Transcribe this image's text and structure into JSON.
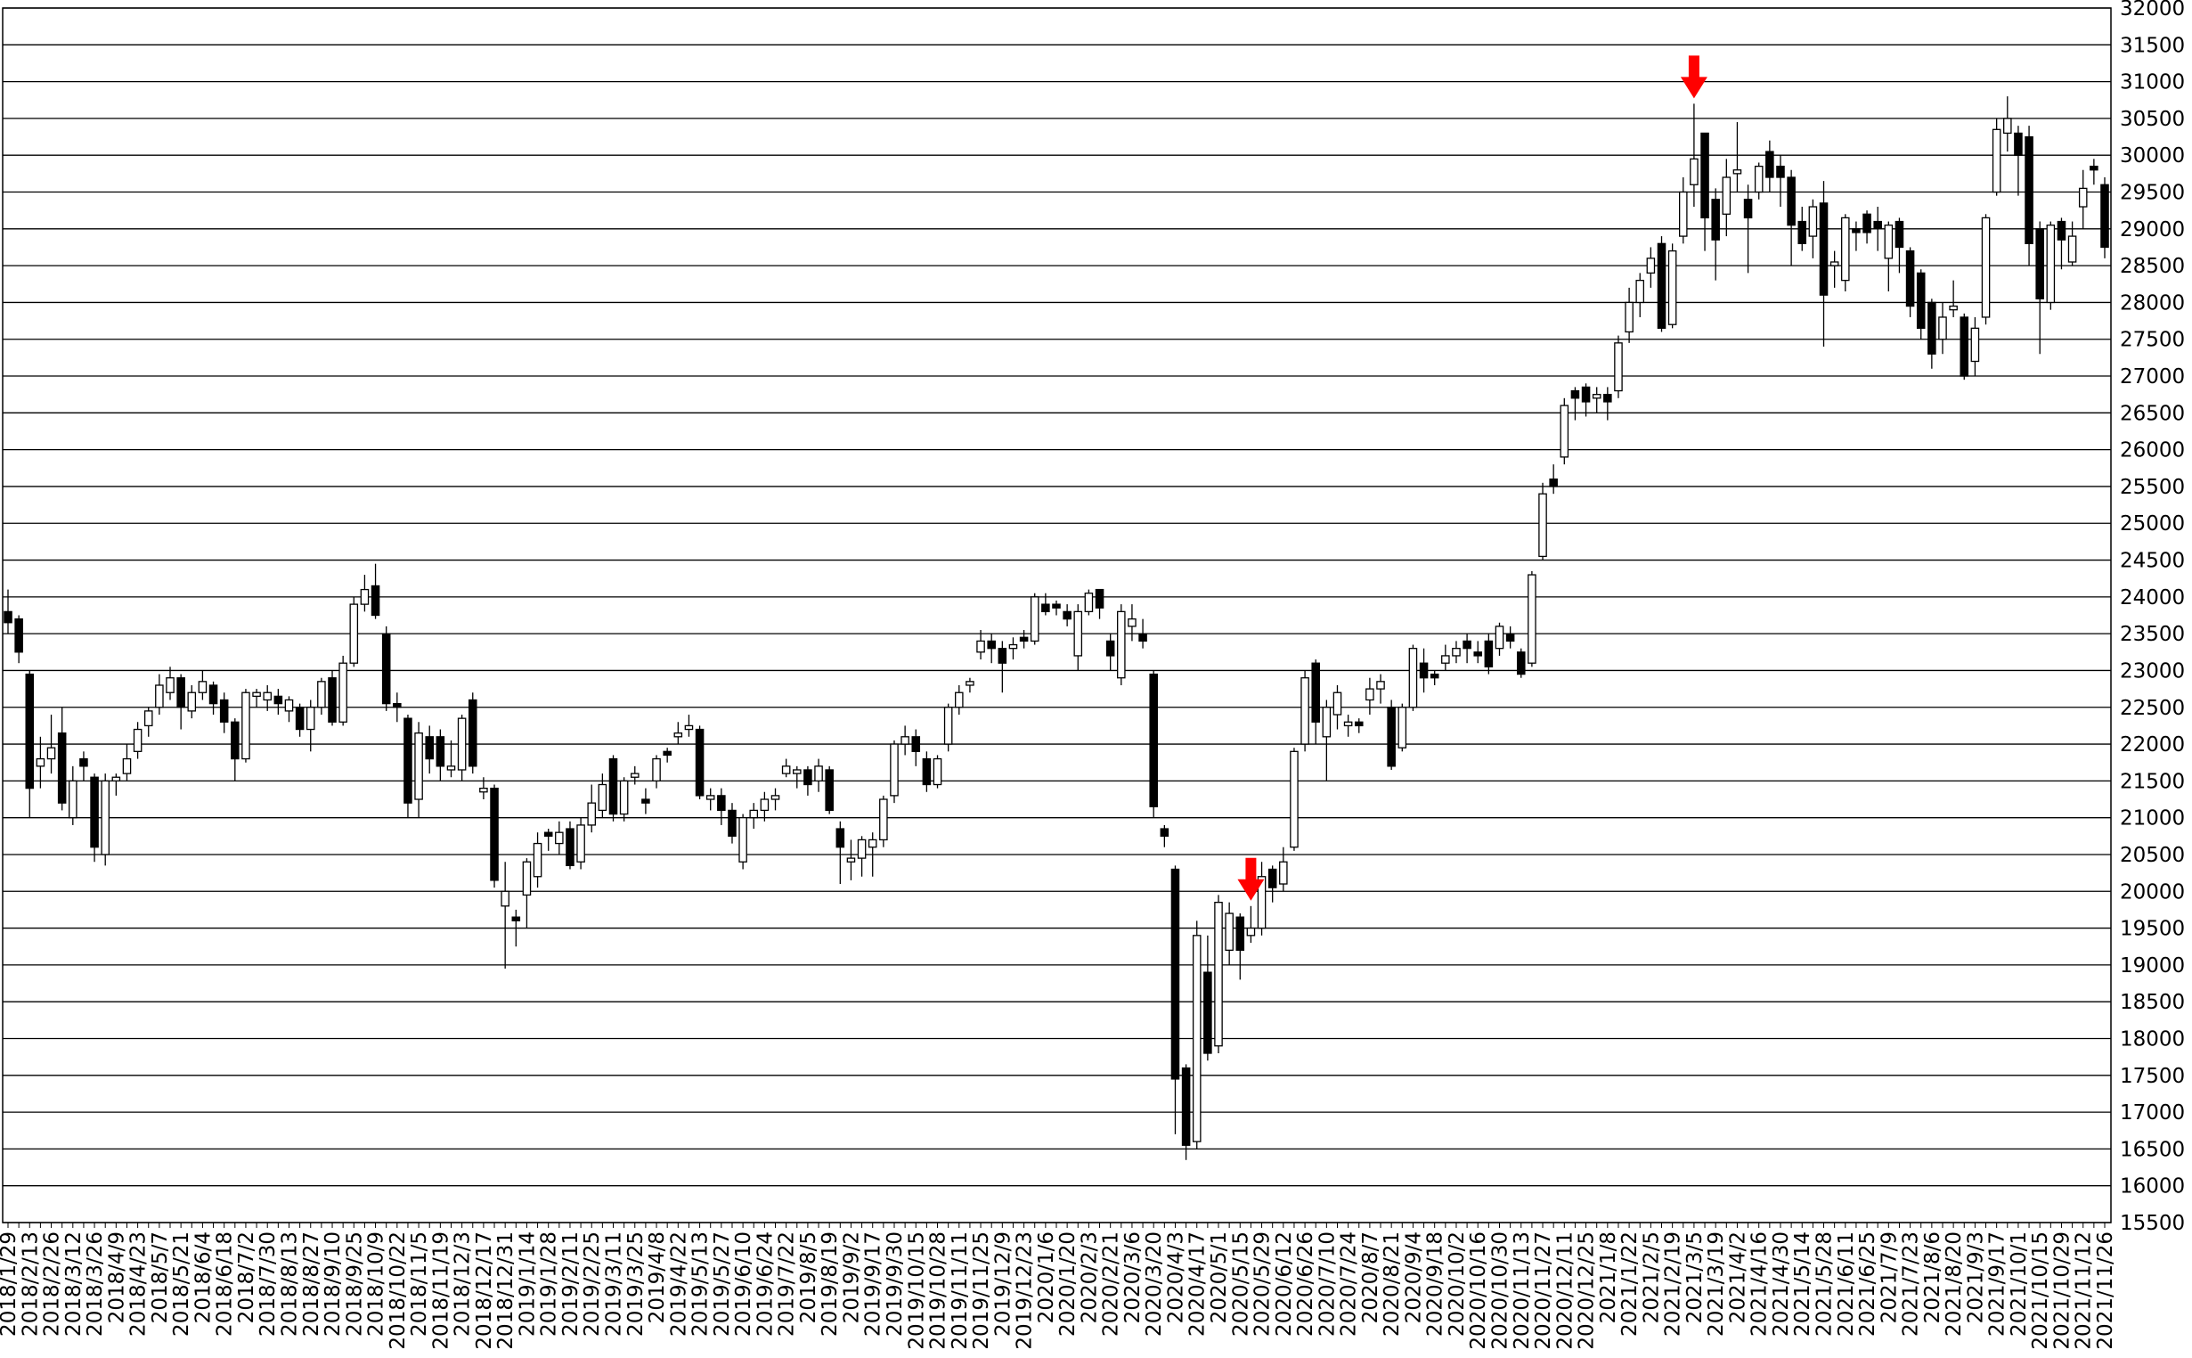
{
  "chart_data": {
    "type": "candlestick",
    "categories": [
      "2018/1/29",
      null,
      "2018/2/13",
      null,
      "2018/2/26",
      null,
      "2018/3/12",
      null,
      "2018/3/26",
      null,
      "2018/4/9",
      null,
      "2018/4/23",
      null,
      "2018/5/7",
      null,
      "2018/5/21",
      null,
      "2018/6/4",
      null,
      "2018/6/18",
      null,
      "2018/7/2",
      null,
      "2018/7/30",
      null,
      "2018/8/13",
      null,
      "2018/8/27",
      null,
      "2018/9/10",
      null,
      "2018/9/25",
      null,
      "2018/10/9",
      null,
      "2018/10/22",
      null,
      "2018/11/5",
      null,
      "2018/11/19",
      null,
      "2018/12/3",
      null,
      "2018/12/17",
      null,
      "2018/12/31",
      null,
      "2019/1/14",
      null,
      "2019/1/28",
      null,
      "2019/2/11",
      null,
      "2019/2/25",
      null,
      "2019/3/11",
      null,
      "2019/3/25",
      null,
      "2019/4/8",
      null,
      "2019/4/22",
      null,
      "2019/5/13",
      null,
      "2019/5/27",
      null,
      "2019/6/10",
      null,
      "2019/6/24",
      null,
      "2019/7/22",
      null,
      "2019/8/5",
      null,
      "2019/8/19",
      null,
      "2019/9/2",
      null,
      "2019/9/17",
      null,
      "2019/9/30",
      null,
      "2019/10/15",
      null,
      "2019/10/28",
      null,
      "2019/11/11",
      null,
      "2019/11/25",
      null,
      "2019/12/9",
      null,
      "2019/12/23",
      null,
      "2020/1/6",
      null,
      "2020/1/20",
      null,
      "2020/2/3",
      null,
      "2020/2/21",
      null,
      "2020/3/6",
      null,
      "2020/3/20",
      null,
      "2020/4/3",
      null,
      "2020/4/17",
      null,
      "2020/5/1",
      null,
      "2020/5/15",
      null,
      "2020/5/29",
      null,
      "2020/6/12",
      null,
      "2020/6/26",
      null,
      "2020/7/10",
      null,
      "2020/7/24",
      null,
      "2020/8/7",
      null,
      "2020/8/21",
      null,
      "2020/9/4",
      null,
      "2020/9/18",
      null,
      "2020/10/2",
      null,
      "2020/10/16",
      null,
      "2020/10/30",
      null,
      "2020/11/13",
      null,
      "2020/11/27",
      null,
      "2020/12/11",
      null,
      "2020/12/25",
      null,
      "2021/1/8",
      null,
      "2021/1/22",
      null,
      "2021/2/5",
      null,
      "2021/2/19",
      null,
      "2021/3/5",
      null,
      "2021/3/19",
      null,
      "2021/4/2",
      null,
      "2021/4/16",
      null,
      "2021/4/30",
      null,
      "2021/5/14",
      null,
      "2021/5/28",
      null,
      "2021/6/11",
      null,
      "2021/6/25",
      null,
      "2021/7/9",
      null,
      "2021/7/23",
      null,
      "2021/8/6",
      null,
      "2021/8/20",
      null,
      "2021/9/3",
      null,
      "2021/9/17",
      null,
      "2021/10/1",
      null,
      "2021/10/15",
      null,
      "2021/10/29",
      null,
      "2021/11/12",
      null,
      "2021/11/26"
    ],
    "ohlc": [
      [
        23800,
        24100,
        23500,
        23650
      ],
      [
        23700,
        23750,
        23100,
        23250
      ],
      [
        22950,
        23000,
        21000,
        21400
      ],
      [
        21700,
        22100,
        21400,
        21800
      ],
      [
        21800,
        22400,
        21600,
        21950
      ],
      [
        22150,
        22500,
        21100,
        21200
      ],
      [
        21000,
        21700,
        20900,
        21500
      ],
      [
        21800,
        21900,
        21500,
        21700
      ],
      [
        21550,
        21600,
        20400,
        20600
      ],
      [
        20500,
        21600,
        20350,
        21500
      ],
      [
        21500,
        21600,
        21300,
        21550
      ],
      [
        21600,
        22000,
        21500,
        21800
      ],
      [
        21900,
        22300,
        21800,
        22200
      ],
      [
        22250,
        22500,
        22100,
        22450
      ],
      [
        22500,
        22950,
        22400,
        22800
      ],
      [
        22700,
        23050,
        22600,
        22900
      ],
      [
        22900,
        22950,
        22200,
        22500
      ],
      [
        22450,
        22800,
        22350,
        22700
      ],
      [
        22700,
        23000,
        22600,
        22850
      ],
      [
        22800,
        22850,
        22400,
        22550
      ],
      [
        22600,
        22700,
        22150,
        22300
      ],
      [
        22300,
        22350,
        21500,
        21800
      ],
      [
        21800,
        22750,
        21750,
        22700
      ],
      [
        22650,
        22750,
        22500,
        22700
      ],
      [
        22600,
        22800,
        22450,
        22700
      ],
      [
        22650,
        22750,
        22400,
        22550
      ],
      [
        22450,
        22650,
        22300,
        22600
      ],
      [
        22500,
        22550,
        22100,
        22200
      ],
      [
        22200,
        22600,
        21900,
        22500
      ],
      [
        22500,
        22900,
        22400,
        22850
      ],
      [
        22900,
        23000,
        22250,
        22300
      ],
      [
        22300,
        23200,
        22250,
        23100
      ],
      [
        23100,
        24000,
        23050,
        23900
      ],
      [
        23900,
        24300,
        23800,
        24100
      ],
      [
        24150,
        24450,
        23700,
        23750
      ],
      [
        23500,
        23600,
        22450,
        22550
      ],
      [
        22550,
        22700,
        22300,
        22500
      ],
      [
        22350,
        22400,
        21000,
        21200
      ],
      [
        21250,
        22300,
        21000,
        22150
      ],
      [
        22100,
        22250,
        21600,
        21800
      ],
      [
        22100,
        22200,
        21500,
        21700
      ],
      [
        21650,
        22050,
        21550,
        21700
      ],
      [
        21650,
        22400,
        21500,
        22350
      ],
      [
        22600,
        22700,
        21600,
        21700
      ],
      [
        21350,
        21550,
        21250,
        21400
      ],
      [
        21400,
        21450,
        20050,
        20150
      ],
      [
        19800,
        20400,
        18950,
        20000
      ],
      [
        19650,
        19750,
        19250,
        19600
      ],
      [
        19950,
        20450,
        19500,
        20400
      ],
      [
        20200,
        20800,
        20050,
        20650
      ],
      [
        20800,
        20850,
        20550,
        20750
      ],
      [
        20650,
        20950,
        20500,
        20800
      ],
      [
        20850,
        20950,
        20300,
        20350
      ],
      [
        20400,
        21000,
        20300,
        20900
      ],
      [
        20900,
        21450,
        20800,
        21200
      ],
      [
        21100,
        21600,
        21000,
        21450
      ],
      [
        21800,
        21850,
        20950,
        21050
      ],
      [
        21050,
        21550,
        20950,
        21500
      ],
      [
        21550,
        21700,
        21450,
        21600
      ],
      [
        21250,
        21400,
        21050,
        21200
      ],
      [
        21500,
        21850,
        21400,
        21800
      ],
      [
        21900,
        21950,
        21750,
        21850
      ],
      [
        22100,
        22300,
        22000,
        22150
      ],
      [
        22200,
        22400,
        22100,
        22250
      ],
      [
        22200,
        22250,
        21250,
        21300
      ],
      [
        21250,
        21400,
        21100,
        21300
      ],
      [
        21300,
        21400,
        20900,
        21100
      ],
      [
        21100,
        21200,
        20650,
        20750
      ],
      [
        20400,
        21050,
        20300,
        21000
      ],
      [
        21000,
        21200,
        20850,
        21100
      ],
      [
        21100,
        21350,
        20950,
        21250
      ],
      [
        21250,
        21400,
        21100,
        21300
      ],
      [
        21600,
        21800,
        21550,
        21700
      ],
      [
        21600,
        21700,
        21400,
        21650
      ],
      [
        21650,
        21700,
        21300,
        21450
      ],
      [
        21500,
        21800,
        21350,
        21700
      ],
      [
        21650,
        21700,
        21050,
        21100
      ],
      [
        20850,
        20950,
        20100,
        20600
      ],
      [
        20400,
        20700,
        20150,
        20450
      ],
      [
        20450,
        20750,
        20200,
        20700
      ],
      [
        20600,
        20800,
        20200,
        20700
      ],
      [
        20700,
        21300,
        20600,
        21250
      ],
      [
        21300,
        22050,
        21200,
        22000
      ],
      [
        22000,
        22250,
        21850,
        22100
      ],
      [
        22100,
        22200,
        21700,
        21900
      ],
      [
        21800,
        21900,
        21350,
        21450
      ],
      [
        21450,
        21850,
        21400,
        21800
      ],
      [
        22000,
        22550,
        21900,
        22500
      ],
      [
        22500,
        22800,
        22400,
        22700
      ],
      [
        22800,
        22900,
        22700,
        22850
      ],
      [
        23250,
        23550,
        23150,
        23400
      ],
      [
        23400,
        23500,
        23100,
        23300
      ],
      [
        23300,
        23400,
        22700,
        23100
      ],
      [
        23300,
        23450,
        23150,
        23350
      ],
      [
        23450,
        23550,
        23300,
        23400
      ],
      [
        23400,
        24050,
        23350,
        24000
      ],
      [
        23900,
        24050,
        23750,
        23800
      ],
      [
        23900,
        23950,
        23750,
        23850
      ],
      [
        23800,
        23900,
        23600,
        23700
      ],
      [
        23200,
        23900,
        23000,
        23800
      ],
      [
        23800,
        24100,
        23750,
        24050
      ],
      [
        24100,
        24100,
        23700,
        23850
      ],
      [
        23400,
        23500,
        23000,
        23200
      ],
      [
        22900,
        23900,
        22800,
        23800
      ],
      [
        23600,
        23900,
        23400,
        23700
      ],
      [
        23500,
        23700,
        23300,
        23400
      ],
      [
        22950,
        23000,
        21000,
        21150
      ],
      [
        20850,
        20900,
        20600,
        20750
      ],
      [
        20300,
        20350,
        16700,
        17450
      ],
      [
        17600,
        17650,
        16350,
        16550
      ],
      [
        16600,
        19600,
        16500,
        19400
      ],
      [
        18900,
        19400,
        17700,
        17800
      ],
      [
        17900,
        19950,
        17800,
        19850
      ],
      [
        19200,
        19850,
        19000,
        19700
      ],
      [
        19650,
        19700,
        18800,
        19200
      ],
      [
        19400,
        19800,
        19300,
        19500
      ],
      [
        19500,
        20400,
        19400,
        20200
      ],
      [
        20300,
        20350,
        19850,
        20050
      ],
      [
        20100,
        20600,
        20000,
        20400
      ],
      [
        20600,
        21950,
        20550,
        21900
      ],
      [
        22000,
        23000,
        21900,
        22900
      ],
      [
        23100,
        23150,
        22000,
        22300
      ],
      [
        22100,
        22600,
        21500,
        22500
      ],
      [
        22400,
        22800,
        22200,
        22700
      ],
      [
        22250,
        22400,
        22100,
        22300
      ],
      [
        22300,
        22350,
        22150,
        22250
      ],
      [
        22600,
        22900,
        22400,
        22750
      ],
      [
        22750,
        22950,
        22550,
        22850
      ],
      [
        22500,
        22600,
        21650,
        21700
      ],
      [
        21950,
        22550,
        21900,
        22500
      ],
      [
        22500,
        23350,
        22450,
        23300
      ],
      [
        23100,
        23300,
        22700,
        22900
      ],
      [
        22950,
        23000,
        22800,
        22900
      ],
      [
        23100,
        23350,
        23000,
        23200
      ],
      [
        23200,
        23400,
        23100,
        23300
      ],
      [
        23400,
        23500,
        23100,
        23300
      ],
      [
        23250,
        23400,
        23100,
        23200
      ],
      [
        23400,
        23500,
        22950,
        23050
      ],
      [
        23300,
        23650,
        23200,
        23600
      ],
      [
        23500,
        23600,
        23300,
        23400
      ],
      [
        23250,
        23300,
        22900,
        22950
      ],
      [
        23100,
        24350,
        23050,
        24300
      ],
      [
        24550,
        25550,
        24500,
        25400
      ],
      [
        25600,
        25800,
        25400,
        25500
      ],
      [
        25900,
        26700,
        25800,
        26600
      ],
      [
        26800,
        26850,
        26400,
        26700
      ],
      [
        26850,
        26900,
        26450,
        26650
      ],
      [
        26700,
        26850,
        26500,
        26750
      ],
      [
        26750,
        26850,
        26400,
        26650
      ],
      [
        26800,
        27550,
        26700,
        27450
      ],
      [
        27600,
        28200,
        27450,
        28000
      ],
      [
        28000,
        28400,
        27800,
        28300
      ],
      [
        28400,
        28750,
        28200,
        28600
      ],
      [
        28800,
        28900,
        27600,
        27650
      ],
      [
        27700,
        28800,
        27650,
        28700
      ],
      [
        28900,
        29700,
        28800,
        29500
      ],
      [
        29600,
        30700,
        29300,
        29950
      ],
      [
        30300,
        30300,
        28700,
        29150
      ],
      [
        29400,
        29550,
        28300,
        28850
      ],
      [
        29200,
        29950,
        28900,
        29700
      ],
      [
        29750,
        30450,
        29500,
        29800
      ],
      [
        29400,
        29600,
        28400,
        29150
      ],
      [
        29500,
        29900,
        29400,
        29850
      ],
      [
        30050,
        30200,
        29500,
        29700
      ],
      [
        29850,
        30000,
        29300,
        29700
      ],
      [
        29700,
        29800,
        28500,
        29050
      ],
      [
        29100,
        29300,
        28700,
        28800
      ],
      [
        28900,
        29400,
        28600,
        29300
      ],
      [
        29350,
        29650,
        27400,
        28100
      ],
      [
        28500,
        28700,
        28200,
        28550
      ],
      [
        28300,
        29200,
        28150,
        29150
      ],
      [
        29000,
        29100,
        28700,
        28950
      ],
      [
        29200,
        29250,
        28800,
        28950
      ],
      [
        29100,
        29300,
        28700,
        29000
      ],
      [
        28600,
        29100,
        28150,
        29050
      ],
      [
        29100,
        29150,
        28400,
        28750
      ],
      [
        28700,
        28750,
        27800,
        27950
      ],
      [
        28400,
        28450,
        27500,
        27650
      ],
      [
        28000,
        28050,
        27100,
        27300
      ],
      [
        27500,
        28000,
        27300,
        27800
      ],
      [
        27900,
        28300,
        27800,
        27950
      ],
      [
        27800,
        27850,
        26950,
        27000
      ],
      [
        27200,
        27800,
        27000,
        27650
      ],
      [
        27800,
        29200,
        27700,
        29150
      ],
      [
        29500,
        30500,
        29450,
        30350
      ],
      [
        30300,
        30800,
        30050,
        30500
      ],
      [
        30300,
        30400,
        29450,
        30000
      ],
      [
        30250,
        30400,
        28500,
        28800
      ],
      [
        29000,
        29100,
        27300,
        28050
      ],
      [
        28000,
        29100,
        27900,
        29050
      ],
      [
        29100,
        29150,
        28450,
        28850
      ],
      [
        28550,
        29100,
        28500,
        28900
      ],
      [
        29300,
        29800,
        29000,
        29550
      ],
      [
        29850,
        29950,
        29600,
        29800
      ],
      [
        29600,
        29700,
        28600,
        28750
      ]
    ],
    "up_color": "#ffffff",
    "down_color": "#000000",
    "highlights": [
      115,
      156
    ],
    "highlight_color": "#ff0000",
    "ylim": [
      15500,
      32000
    ],
    "yticks": [
      15500,
      16000,
      16500,
      17000,
      17500,
      18000,
      18500,
      19000,
      19500,
      20000,
      20500,
      21000,
      21500,
      22000,
      22500,
      23000,
      23500,
      24000,
      24500,
      25000,
      25500,
      26000,
      26500,
      27000,
      27500,
      28000,
      28500,
      29000,
      29500,
      30000,
      30500,
      31000,
      31500,
      32000
    ],
    "grid": true
  }
}
